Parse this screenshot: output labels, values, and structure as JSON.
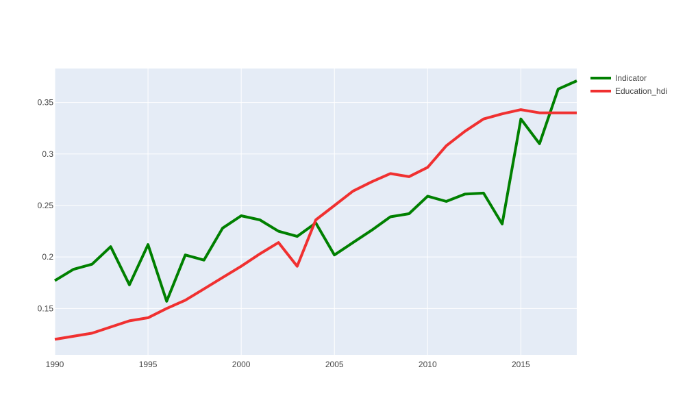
{
  "chart_data": {
    "type": "line",
    "title": "",
    "xlabel": "",
    "ylabel": "",
    "xlim": [
      1990,
      2018
    ],
    "ylim": [
      0.105,
      0.383
    ],
    "grid": true,
    "legend_position": "top-right",
    "x_ticks": [
      1990,
      1995,
      2000,
      2005,
      2010,
      2015
    ],
    "x_tick_labels": [
      "1990",
      "1995",
      "2000",
      "2005",
      "2010",
      "2015"
    ],
    "y_ticks": [
      0.15,
      0.2,
      0.25,
      0.3,
      0.35
    ],
    "y_tick_labels": [
      "0.15",
      "0.2",
      "0.25",
      "0.3",
      "0.35"
    ],
    "x": [
      1990,
      1991,
      1992,
      1993,
      1994,
      1995,
      1996,
      1997,
      1998,
      1999,
      2000,
      2001,
      2002,
      2003,
      2004,
      2005,
      2006,
      2007,
      2008,
      2009,
      2010,
      2011,
      2012,
      2013,
      2014,
      2015,
      2016,
      2017,
      2018
    ],
    "series": [
      {
        "name": "Indicator",
        "color": "#008000",
        "values": [
          0.177,
          0.188,
          0.193,
          0.21,
          0.173,
          0.212,
          0.157,
          0.202,
          0.197,
          0.228,
          0.24,
          0.236,
          0.225,
          0.22,
          0.233,
          0.202,
          0.214,
          0.226,
          0.239,
          0.242,
          0.259,
          0.254,
          0.261,
          0.262,
          0.232,
          0.334,
          0.31,
          0.363,
          0.371
        ]
      },
      {
        "name": "Education_hdi",
        "color": "#f03030",
        "values": [
          0.12,
          0.123,
          0.126,
          0.132,
          0.138,
          0.141,
          0.15,
          0.158,
          0.169,
          0.18,
          0.191,
          0.203,
          0.214,
          0.191,
          0.236,
          0.25,
          0.264,
          0.273,
          0.281,
          0.278,
          0.287,
          0.308,
          0.322,
          0.334,
          0.339,
          0.343,
          0.34,
          0.34,
          0.34
        ]
      }
    ]
  }
}
